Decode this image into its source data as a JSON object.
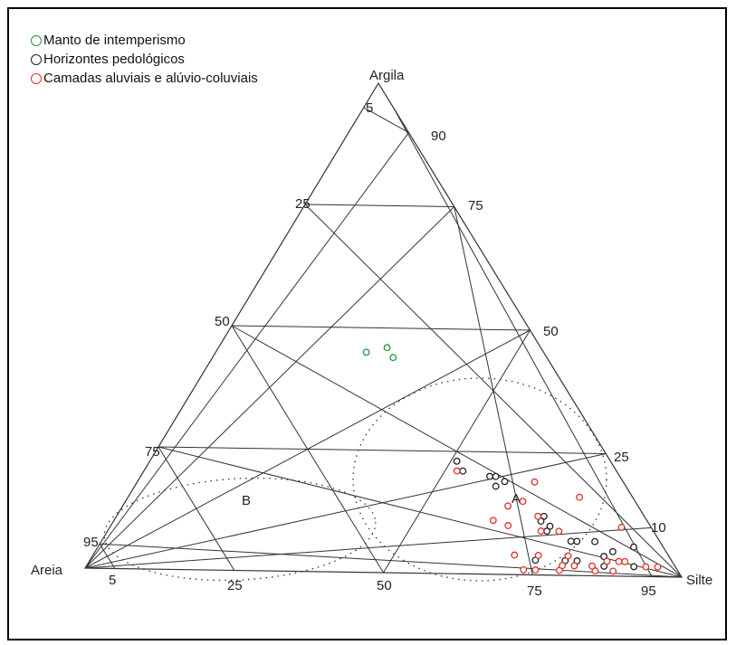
{
  "chart_data": {
    "type": "scatter",
    "subtype": "ternary",
    "vertices": {
      "left": "Areia",
      "right": "Silte",
      "top": "Argila"
    },
    "left_edge_ticks": [
      "95",
      "75",
      "50",
      "25",
      "5"
    ],
    "right_edge_ticks": [
      "90",
      "75",
      "50",
      "25",
      "10"
    ],
    "bottom_edge_ticks": [
      "5",
      "25",
      "50",
      "75",
      "95"
    ],
    "region_labels": [
      "A",
      "B"
    ],
    "colors": {
      "green": "#1a9a3c",
      "black": "#222222",
      "red": "#e0302a"
    },
    "legend": [
      {
        "label": "Manto de intemperismo",
        "color": "#1a9a3c"
      },
      {
        "label": "Horizontes pedológicos",
        "color": "#222222"
      },
      {
        "label": "Camadas aluviais e alúvio-coluviais",
        "color": "#e0302a"
      }
    ],
    "series": [
      {
        "name": "Manto de intemperismo",
        "color": "#1a9a3c",
        "points": [
          [
            46,
            28
          ],
          [
            45,
            25
          ],
          [
            44,
            30
          ]
        ]
      },
      {
        "name": "Horizontes pedológicos",
        "color": "#222222",
        "points": [
          [
            19,
            61
          ],
          [
            18,
            60
          ],
          [
            20,
            58
          ],
          [
            23,
            51
          ],
          [
            21,
            53
          ],
          [
            20,
            59
          ],
          [
            12,
            71
          ],
          [
            11,
            71
          ],
          [
            10,
            73
          ],
          [
            9,
            73
          ],
          [
            7,
            79
          ],
          [
            7,
            78
          ],
          [
            7,
            82
          ],
          [
            6,
            89
          ],
          [
            5,
            86
          ],
          [
            4,
            85
          ],
          [
            3,
            81
          ],
          [
            3,
            79
          ],
          [
            3,
            74
          ],
          [
            2,
            91
          ],
          [
            2,
            86
          ]
        ]
      },
      {
        "name": "Camadas aluviais e alúvio-coluviais",
        "color": "#e0302a",
        "points": [
          [
            21,
            52
          ],
          [
            19,
            66
          ],
          [
            16,
            75
          ],
          [
            14,
            64
          ],
          [
            15,
            66
          ],
          [
            12,
            70
          ],
          [
            11,
            63
          ],
          [
            10,
            85
          ],
          [
            10,
            66
          ],
          [
            9,
            75
          ],
          [
            9,
            72
          ],
          [
            4,
            70
          ],
          [
            4,
            74
          ],
          [
            3,
            86
          ],
          [
            3,
            88
          ],
          [
            3,
            89
          ],
          [
            2,
            93
          ],
          [
            2,
            95
          ],
          [
            4,
            79
          ],
          [
            1,
            85
          ],
          [
            1,
            88
          ],
          [
            1,
            79
          ],
          [
            2,
            81
          ],
          [
            2,
            84
          ],
          [
            1,
            75
          ],
          [
            1,
            73
          ],
          [
            2,
            79
          ]
        ]
      }
    ]
  }
}
